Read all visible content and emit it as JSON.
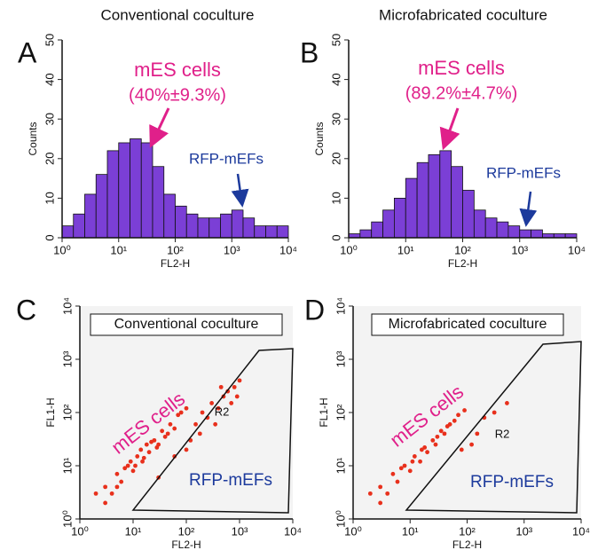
{
  "chart_data": [
    {
      "type": "histogram",
      "panel": "A",
      "title": "Conventional coculture",
      "xlabel": "FL2-H",
      "ylabel": "Counts",
      "bins": [
        1,
        1.585,
        2.512,
        3.981,
        6.31,
        10,
        15.85,
        25.12,
        39.81,
        63.1,
        100,
        158.5,
        251.2,
        398.1,
        631,
        1000,
        1585,
        2512,
        3981,
        6310,
        10000
      ],
      "values": [
        3,
        6,
        11,
        16,
        22,
        24,
        25,
        24,
        18,
        11,
        8,
        6,
        5,
        5,
        6,
        7,
        5,
        3,
        3,
        3
      ],
      "color": "#7b3fd6",
      "log_x": true,
      "xlim": [
        1,
        10000
      ],
      "ylim": [
        0,
        50
      ],
      "xticks": [
        {
          "value": 1,
          "label": "10⁰"
        },
        {
          "value": 10,
          "label": "10¹"
        },
        {
          "value": 100,
          "label": "10²"
        },
        {
          "value": 1000,
          "label": "10³"
        },
        {
          "value": 10000,
          "label": "10⁴"
        }
      ],
      "yticks": [
        0,
        10,
        20,
        30,
        40,
        50
      ],
      "annotations": [
        {
          "text": "mES cells",
          "color": "#e0208a"
        },
        {
          "text": "(40%±9.3%)",
          "color": "#e0208a"
        },
        {
          "text": "RFP-mEFs",
          "color": "#1c3a9c"
        }
      ]
    },
    {
      "type": "histogram",
      "panel": "B",
      "title": "Microfabricated coculture",
      "xlabel": "FL2-H",
      "ylabel": "Counts",
      "bins": [
        1,
        1.585,
        2.512,
        3.981,
        6.31,
        10,
        15.85,
        25.12,
        39.81,
        63.1,
        100,
        158.5,
        251.2,
        398.1,
        631,
        1000,
        1585,
        2512,
        3981,
        6310,
        10000
      ],
      "values": [
        1,
        2,
        4,
        7,
        10,
        15,
        19,
        21,
        22,
        18,
        12,
        7,
        5,
        4,
        3,
        2,
        2,
        1,
        1,
        1
      ],
      "color": "#7b3fd6",
      "log_x": true,
      "xlim": [
        1,
        10000
      ],
      "ylim": [
        0,
        50
      ],
      "xticks": [
        {
          "value": 1,
          "label": "10⁰"
        },
        {
          "value": 10,
          "label": "10¹"
        },
        {
          "value": 100,
          "label": "10²"
        },
        {
          "value": 1000,
          "label": "10³"
        },
        {
          "value": 10000,
          "label": "10⁴"
        }
      ],
      "yticks": [
        0,
        10,
        20,
        30,
        40,
        50
      ],
      "annotations": [
        {
          "text": "mES cells",
          "color": "#e0208a"
        },
        {
          "text": "(89.2%±4.7%)",
          "color": "#e0208a"
        },
        {
          "text": "RFP-mEFs",
          "color": "#1c3a9c"
        }
      ]
    },
    {
      "type": "scatter",
      "panel": "C",
      "title": "Conventional coculture",
      "xlabel": "FL2-H",
      "ylabel": "FL1-H",
      "x": [
        3,
        4,
        5,
        6,
        8,
        10,
        12,
        15,
        18,
        20,
        25,
        30,
        35,
        40,
        50,
        60,
        70,
        2,
        3,
        5,
        7,
        9,
        11,
        14,
        16,
        22,
        28,
        45,
        80,
        100,
        150,
        200,
        300,
        400,
        500,
        600,
        800,
        250,
        350,
        700,
        450,
        180,
        120,
        900,
        1000,
        60,
        30,
        100
      ],
      "y": [
        4,
        3,
        7,
        5,
        10,
        8,
        15,
        12,
        25,
        18,
        30,
        25,
        45,
        35,
        60,
        50,
        90,
        3,
        2,
        4,
        9,
        12,
        10,
        20,
        14,
        28,
        22,
        40,
        100,
        120,
        60,
        100,
        150,
        120,
        200,
        250,
        300,
        80,
        60,
        150,
        300,
        40,
        30,
        200,
        400,
        15,
        6,
        20
      ],
      "color": "#e8301c",
      "log_x": true,
      "log_y": true,
      "xlim": [
        1,
        10000
      ],
      "ylim": [
        1,
        10000
      ],
      "xticks": [
        {
          "value": 1,
          "label": "10⁰"
        },
        {
          "value": 10,
          "label": "10¹"
        },
        {
          "value": 100,
          "label": "10²"
        },
        {
          "value": 1000,
          "label": "10³"
        },
        {
          "value": 10000,
          "label": "10⁴"
        }
      ],
      "yticks": [
        {
          "value": 1,
          "label": "10⁰"
        },
        {
          "value": 10,
          "label": "10¹"
        },
        {
          "value": 100,
          "label": "10²"
        },
        {
          "value": 1000,
          "label": "10³"
        },
        {
          "value": 10000,
          "label": "10⁴"
        }
      ],
      "annotations": [
        {
          "text": "mES cells",
          "color": "#e0208a"
        },
        {
          "text": "R2",
          "color": "#111111"
        },
        {
          "text": "RFP-mEFs",
          "color": "#1c3a9c"
        }
      ]
    },
    {
      "type": "scatter",
      "panel": "D",
      "title": "Microfabricated coculture",
      "xlabel": "FL2-H",
      "ylabel": "FL1-H",
      "x": [
        2,
        3,
        3,
        4,
        5,
        6,
        7,
        8,
        10,
        11,
        12,
        15,
        16,
        18,
        20,
        25,
        28,
        30,
        35,
        40,
        45,
        50,
        60,
        70,
        90,
        150,
        200,
        300,
        120,
        500,
        80
      ],
      "y": [
        3,
        2,
        4,
        3,
        7,
        5,
        9,
        10,
        8,
        12,
        15,
        12,
        20,
        22,
        18,
        30,
        25,
        35,
        45,
        40,
        55,
        60,
        70,
        90,
        110,
        40,
        80,
        100,
        25,
        150,
        20
      ],
      "color": "#e8301c",
      "log_x": true,
      "log_y": true,
      "xlim": [
        1,
        10000
      ],
      "ylim": [
        1,
        10000
      ],
      "xticks": [
        {
          "value": 1,
          "label": "10⁰"
        },
        {
          "value": 10,
          "label": "10¹"
        },
        {
          "value": 100,
          "label": "10²"
        },
        {
          "value": 1000,
          "label": "10³"
        },
        {
          "value": 10000,
          "label": "10⁴"
        }
      ],
      "yticks": [
        {
          "value": 1,
          "label": "10⁰"
        },
        {
          "value": 10,
          "label": "10¹"
        },
        {
          "value": 100,
          "label": "10²"
        },
        {
          "value": 1000,
          "label": "10³"
        },
        {
          "value": 10000,
          "label": "10⁴"
        }
      ],
      "annotations": [
        {
          "text": "mES cells",
          "color": "#e0208a"
        },
        {
          "text": "R2",
          "color": "#111111"
        },
        {
          "text": "RFP-mEFs",
          "color": "#1c3a9c"
        }
      ]
    }
  ]
}
